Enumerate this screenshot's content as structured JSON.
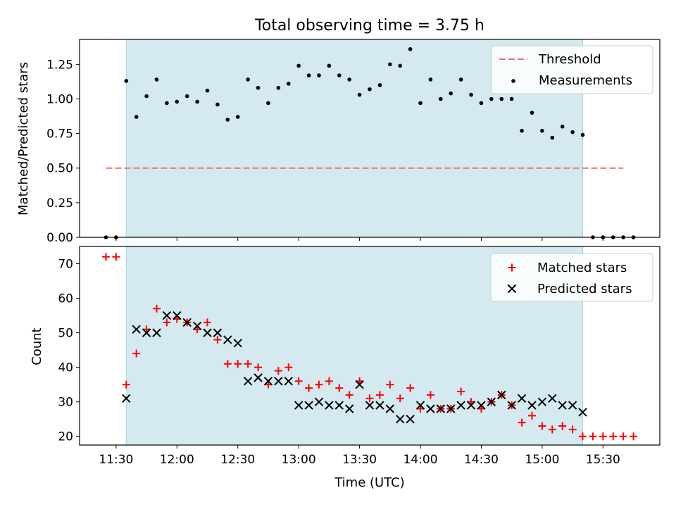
{
  "chart_data": [
    {
      "type": "scatter",
      "title": "Total observing time = 3.75 h",
      "ylabel": "Matched/Predicted stars",
      "ylim": [
        0,
        1.43
      ],
      "yticks": [
        "0.00",
        "0.25",
        "0.50",
        "0.75",
        "1.00",
        "1.25"
      ],
      "ytick_values": [
        0,
        0.25,
        0.5,
        0.75,
        1.0,
        1.25
      ],
      "legend_position": "top-right",
      "shaded_region": {
        "start": "11:35",
        "end": "15:20",
        "color": "#d4eaf0"
      },
      "threshold": {
        "name": "Threshold",
        "value": 0.5,
        "x_start": "11:25",
        "x_end": "15:40",
        "color": "#f07070"
      },
      "series": [
        {
          "name": "Measurements",
          "color": "#000000",
          "points": [
            [
              "11:25",
              0.0
            ],
            [
              "11:30",
              0.0
            ],
            [
              "11:35",
              1.13
            ],
            [
              "11:40",
              0.87
            ],
            [
              "11:45",
              1.02
            ],
            [
              "11:50",
              1.14
            ],
            [
              "11:55",
              0.97
            ],
            [
              "12:00",
              0.98
            ],
            [
              "12:05",
              1.02
            ],
            [
              "12:10",
              0.98
            ],
            [
              "12:15",
              1.06
            ],
            [
              "12:20",
              0.96
            ],
            [
              "12:25",
              0.85
            ],
            [
              "12:30",
              0.87
            ],
            [
              "12:35",
              1.14
            ],
            [
              "12:40",
              1.08
            ],
            [
              "12:45",
              0.97
            ],
            [
              "12:50",
              1.08
            ],
            [
              "12:55",
              1.11
            ],
            [
              "13:00",
              1.24
            ],
            [
              "13:05",
              1.17
            ],
            [
              "13:10",
              1.17
            ],
            [
              "13:15",
              1.24
            ],
            [
              "13:20",
              1.17
            ],
            [
              "13:25",
              1.14
            ],
            [
              "13:30",
              1.03
            ],
            [
              "13:35",
              1.07
            ],
            [
              "13:40",
              1.1
            ],
            [
              "13:45",
              1.25
            ],
            [
              "13:50",
              1.24
            ],
            [
              "13:55",
              1.36
            ],
            [
              "14:00",
              0.97
            ],
            [
              "14:05",
              1.14
            ],
            [
              "14:10",
              1.0
            ],
            [
              "14:15",
              1.04
            ],
            [
              "14:20",
              1.14
            ],
            [
              "14:25",
              1.03
            ],
            [
              "14:30",
              0.97
            ],
            [
              "14:35",
              1.0
            ],
            [
              "14:40",
              1.0
            ],
            [
              "14:45",
              1.0
            ],
            [
              "14:50",
              0.77
            ],
            [
              "14:55",
              0.9
            ],
            [
              "15:00",
              0.77
            ],
            [
              "15:05",
              0.72
            ],
            [
              "15:10",
              0.8
            ],
            [
              "15:15",
              0.76
            ],
            [
              "15:20",
              0.74
            ],
            [
              "15:25",
              0.0
            ],
            [
              "15:30",
              0.0
            ],
            [
              "15:35",
              0.0
            ],
            [
              "15:40",
              0.0
            ],
            [
              "15:45",
              0.0
            ]
          ]
        }
      ]
    },
    {
      "type": "scatter",
      "xlabel": "Time (UTC)",
      "ylabel": "Count",
      "ylim": [
        17.5,
        75
      ],
      "yticks": [
        "20",
        "30",
        "40",
        "50",
        "60",
        "70"
      ],
      "ytick_values": [
        20,
        30,
        40,
        50,
        60,
        70
      ],
      "xticks": [
        "11:30",
        "12:00",
        "12:30",
        "13:00",
        "13:30",
        "14:00",
        "14:30",
        "15:00",
        "15:30"
      ],
      "xlim": [
        "11:12",
        "15:58"
      ],
      "legend_position": "top-right",
      "shaded_region": {
        "start": "11:35",
        "end": "15:20",
        "color": "#d4eaf0"
      },
      "series": [
        {
          "name": "Matched stars",
          "marker": "plus",
          "color": "#ff0000",
          "points": [
            [
              "11:25",
              72
            ],
            [
              "11:30",
              72
            ],
            [
              "11:35",
              35
            ],
            [
              "11:40",
              44
            ],
            [
              "11:45",
              51
            ],
            [
              "11:50",
              57
            ],
            [
              "11:55",
              53
            ],
            [
              "12:00",
              54
            ],
            [
              "12:05",
              53
            ],
            [
              "12:10",
              51
            ],
            [
              "12:15",
              53
            ],
            [
              "12:20",
              48
            ],
            [
              "12:25",
              41
            ],
            [
              "12:30",
              41
            ],
            [
              "12:35",
              41
            ],
            [
              "12:40",
              40
            ],
            [
              "12:45",
              35
            ],
            [
              "12:50",
              39
            ],
            [
              "12:55",
              40
            ],
            [
              "13:00",
              36
            ],
            [
              "13:05",
              34
            ],
            [
              "13:10",
              35
            ],
            [
              "13:15",
              36
            ],
            [
              "13:20",
              34
            ],
            [
              "13:25",
              32
            ],
            [
              "13:30",
              36
            ],
            [
              "13:35",
              31
            ],
            [
              "13:40",
              32
            ],
            [
              "13:45",
              35
            ],
            [
              "13:50",
              31
            ],
            [
              "13:55",
              34
            ],
            [
              "14:00",
              28
            ],
            [
              "14:05",
              32
            ],
            [
              "14:10",
              28
            ],
            [
              "14:15",
              28
            ],
            [
              "14:20",
              33
            ],
            [
              "14:25",
              30
            ],
            [
              "14:30",
              28
            ],
            [
              "14:35",
              30
            ],
            [
              "14:40",
              32
            ],
            [
              "14:45",
              29
            ],
            [
              "14:50",
              24
            ],
            [
              "14:55",
              26
            ],
            [
              "15:00",
              23
            ],
            [
              "15:05",
              22
            ],
            [
              "15:10",
              23
            ],
            [
              "15:15",
              22
            ],
            [
              "15:20",
              20
            ],
            [
              "15:25",
              20
            ],
            [
              "15:30",
              20
            ],
            [
              "15:35",
              20
            ],
            [
              "15:40",
              20
            ],
            [
              "15:45",
              20
            ]
          ]
        },
        {
          "name": "Predicted stars",
          "marker": "x",
          "color": "#000000",
          "points": [
            [
              "11:35",
              31
            ],
            [
              "11:40",
              51
            ],
            [
              "11:45",
              50
            ],
            [
              "11:50",
              50
            ],
            [
              "11:55",
              55
            ],
            [
              "12:00",
              55
            ],
            [
              "12:05",
              53
            ],
            [
              "12:10",
              52
            ],
            [
              "12:15",
              50
            ],
            [
              "12:20",
              50
            ],
            [
              "12:25",
              48
            ],
            [
              "12:30",
              47
            ],
            [
              "12:35",
              36
            ],
            [
              "12:40",
              37
            ],
            [
              "12:45",
              36
            ],
            [
              "12:50",
              36
            ],
            [
              "12:55",
              36
            ],
            [
              "13:00",
              29
            ],
            [
              "13:05",
              29
            ],
            [
              "13:10",
              30
            ],
            [
              "13:15",
              29
            ],
            [
              "13:20",
              29
            ],
            [
              "13:25",
              28
            ],
            [
              "13:30",
              35
            ],
            [
              "13:35",
              29
            ],
            [
              "13:40",
              29
            ],
            [
              "13:45",
              28
            ],
            [
              "13:50",
              25
            ],
            [
              "13:55",
              25
            ],
            [
              "14:00",
              29
            ],
            [
              "14:05",
              28
            ],
            [
              "14:10",
              28
            ],
            [
              "14:15",
              28
            ],
            [
              "14:20",
              29
            ],
            [
              "14:25",
              29
            ],
            [
              "14:30",
              29
            ],
            [
              "14:35",
              30
            ],
            [
              "14:40",
              32
            ],
            [
              "14:45",
              29
            ],
            [
              "14:50",
              31
            ],
            [
              "14:55",
              29
            ],
            [
              "15:00",
              30
            ],
            [
              "15:05",
              31
            ],
            [
              "15:10",
              29
            ],
            [
              "15:15",
              29
            ],
            [
              "15:20",
              27
            ]
          ]
        }
      ]
    }
  ]
}
